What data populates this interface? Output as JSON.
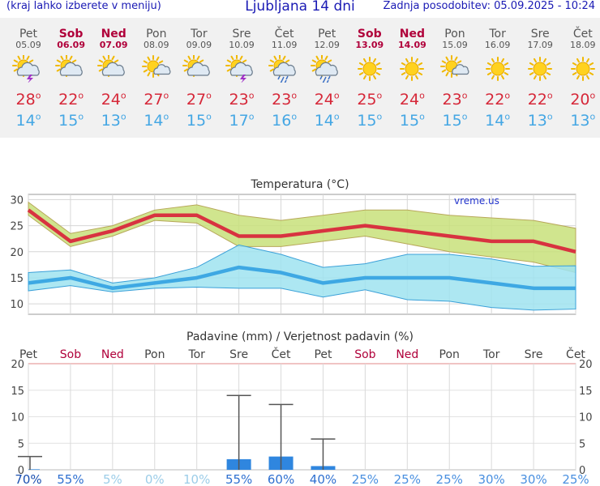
{
  "header": {
    "menu_hint": "(kraj lahko izberete v meniju)",
    "title": "Ljubljana 14 dni",
    "updated": "Zadnja posodobitev: 05.09.2025 - 10:24"
  },
  "days": [
    {
      "name": "Pet",
      "date": "05.09",
      "weekend": false,
      "icon": "sun-cloud-thunder-icon",
      "max": "28",
      "min": "14"
    },
    {
      "name": "Sob",
      "date": "06.09",
      "weekend": true,
      "icon": "sun-cloud-icon",
      "max": "22",
      "min": "15"
    },
    {
      "name": "Ned",
      "date": "07.09",
      "weekend": true,
      "icon": "sun-cloud-icon",
      "max": "24",
      "min": "13"
    },
    {
      "name": "Pon",
      "date": "08.09",
      "weekend": false,
      "icon": "sun-small-cloud-icon",
      "max": "27",
      "min": "14"
    },
    {
      "name": "Tor",
      "date": "09.09",
      "weekend": false,
      "icon": "sun-cloud-icon",
      "max": "27",
      "min": "15"
    },
    {
      "name": "Sre",
      "date": "10.09",
      "weekend": false,
      "icon": "sun-cloud-thunder-icon",
      "max": "23",
      "min": "17"
    },
    {
      "name": "Čet",
      "date": "11.09",
      "weekend": false,
      "icon": "sun-cloud-rain-icon",
      "max": "23",
      "min": "16"
    },
    {
      "name": "Pet",
      "date": "12.09",
      "weekend": false,
      "icon": "sun-cloud-rain-icon",
      "max": "24",
      "min": "14"
    },
    {
      "name": "Sob",
      "date": "13.09",
      "weekend": true,
      "icon": "sun-icon",
      "max": "25",
      "min": "15"
    },
    {
      "name": "Ned",
      "date": "14.09",
      "weekend": true,
      "icon": "sun-icon",
      "max": "24",
      "min": "15"
    },
    {
      "name": "Pon",
      "date": "15.09",
      "weekend": false,
      "icon": "sun-small-cloud-icon",
      "max": "23",
      "min": "15"
    },
    {
      "name": "Tor",
      "date": "16.09",
      "weekend": false,
      "icon": "sun-icon",
      "max": "22",
      "min": "14"
    },
    {
      "name": "Sre",
      "date": "17.09",
      "weekend": false,
      "icon": "sun-icon",
      "max": "22",
      "min": "13"
    },
    {
      "name": "Čet",
      "date": "18.09",
      "weekend": false,
      "icon": "sun-icon",
      "max": "20",
      "min": "13"
    }
  ],
  "colors": {
    "max": "#d62839",
    "min": "#45a7e4",
    "weekend": "#b0003a",
    "rain_bar": "#2f86df",
    "max_band": "#c8e07a",
    "min_band": "#9fe3f0"
  },
  "chart_data": [
    {
      "type": "line",
      "title": "Temperatura (°C)",
      "watermark": "vreme.us",
      "ylim": [
        8,
        31
      ],
      "yticks": [
        10,
        15,
        20,
        25,
        30
      ],
      "grid": true,
      "x": [
        0,
        1,
        2,
        3,
        4,
        5,
        6,
        7,
        8,
        9,
        10,
        11,
        12,
        13
      ],
      "series": [
        {
          "values": [
            28,
            22,
            24,
            27,
            27,
            23,
            23,
            24,
            25,
            24,
            23,
            22,
            22,
            20
          ]
        },
        {
          "values": [
            14,
            15,
            13,
            14,
            15,
            17,
            16,
            14,
            15,
            15,
            15,
            14,
            13,
            13
          ]
        }
      ],
      "max_band": {
        "upper": [
          29.5,
          23.5,
          25,
          28,
          29,
          27,
          26,
          27,
          28,
          28,
          27,
          26.5,
          26,
          24.5
        ],
        "lower": [
          27,
          21,
          23,
          26,
          25.5,
          21,
          21,
          22,
          23,
          21.5,
          20,
          19,
          18,
          16
        ]
      },
      "min_band": {
        "upper": [
          16,
          16.5,
          14,
          15,
          17,
          21.3,
          19.5,
          17,
          17.7,
          19.5,
          19.5,
          18.6,
          17.2,
          17.3
        ],
        "lower": [
          12.5,
          13.5,
          12.3,
          13,
          13.2,
          13,
          13,
          11.3,
          12.7,
          10.8,
          10.5,
          9.3,
          8.8,
          9
        ]
      }
    },
    {
      "type": "bar",
      "title": "Padavine (mm) / Verjetnost padavin (%)",
      "ylim": [
        0,
        20
      ],
      "yticks": [
        0,
        5,
        10,
        15,
        20
      ],
      "categories": [
        "Pet",
        "Sob",
        "Ned",
        "Pon",
        "Tor",
        "Sre",
        "Čet",
        "Pet",
        "Sob",
        "Ned",
        "Pon",
        "Tor",
        "Sre",
        "Čet"
      ],
      "values": [
        0.1,
        0,
        0,
        0,
        0,
        2.0,
        2.5,
        0.7,
        0,
        0,
        0,
        0,
        0,
        0
      ],
      "error_high": [
        2.5,
        0,
        0,
        0,
        0,
        14,
        12.3,
        5.8,
        0,
        0,
        0,
        0,
        0,
        0
      ],
      "probability": [
        "70%",
        "55%",
        "5%",
        "0%",
        "10%",
        "55%",
        "60%",
        "40%",
        "25%",
        "25%",
        "25%",
        "30%",
        "30%",
        "25%"
      ]
    }
  ]
}
